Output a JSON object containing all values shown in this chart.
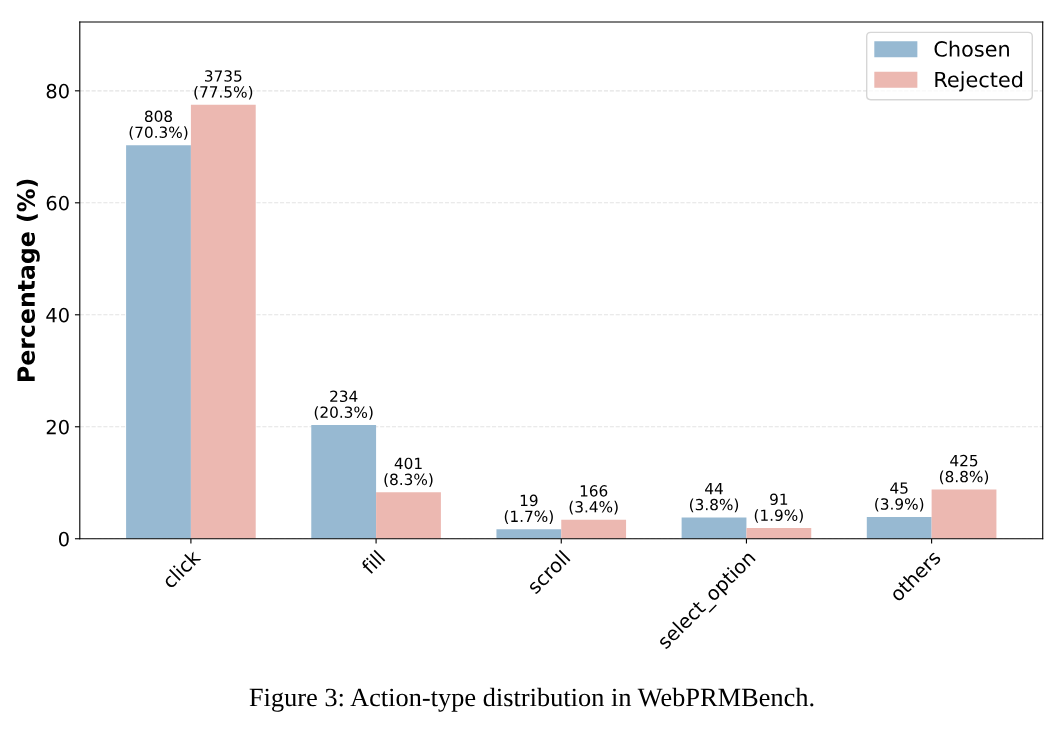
{
  "chart_data": {
    "type": "bar",
    "ylabel": "Percentage (%)",
    "categories": [
      "click",
      "fill",
      "scroll",
      "select_option",
      "others"
    ],
    "series": [
      {
        "name": "Chosen",
        "color": "#97b9d2",
        "values": [
          70.3,
          20.3,
          1.7,
          3.8,
          3.9
        ],
        "value_labels": [
          "808\n(70.3%)",
          "234\n(20.3%)",
          "19\n(1.7%)",
          "44\n(3.8%)",
          "45\n(3.9%)"
        ]
      },
      {
        "name": "Rejected",
        "color": "#ecb8b1",
        "values": [
          77.5,
          8.3,
          3.4,
          1.9,
          8.8
        ],
        "value_labels": [
          "3735\n(77.5%)",
          "401\n(8.3%)",
          "166\n(3.4%)",
          "91\n(1.9%)",
          "425\n(8.8%)"
        ]
      }
    ],
    "ylim": [
      0,
      92.3
    ],
    "yticks": [
      0,
      20,
      40,
      60,
      80
    ],
    "grid": "y",
    "legend": "top right",
    "annotations": [
      "Figure 3: Action-type distribution in WebPRMBench."
    ]
  }
}
